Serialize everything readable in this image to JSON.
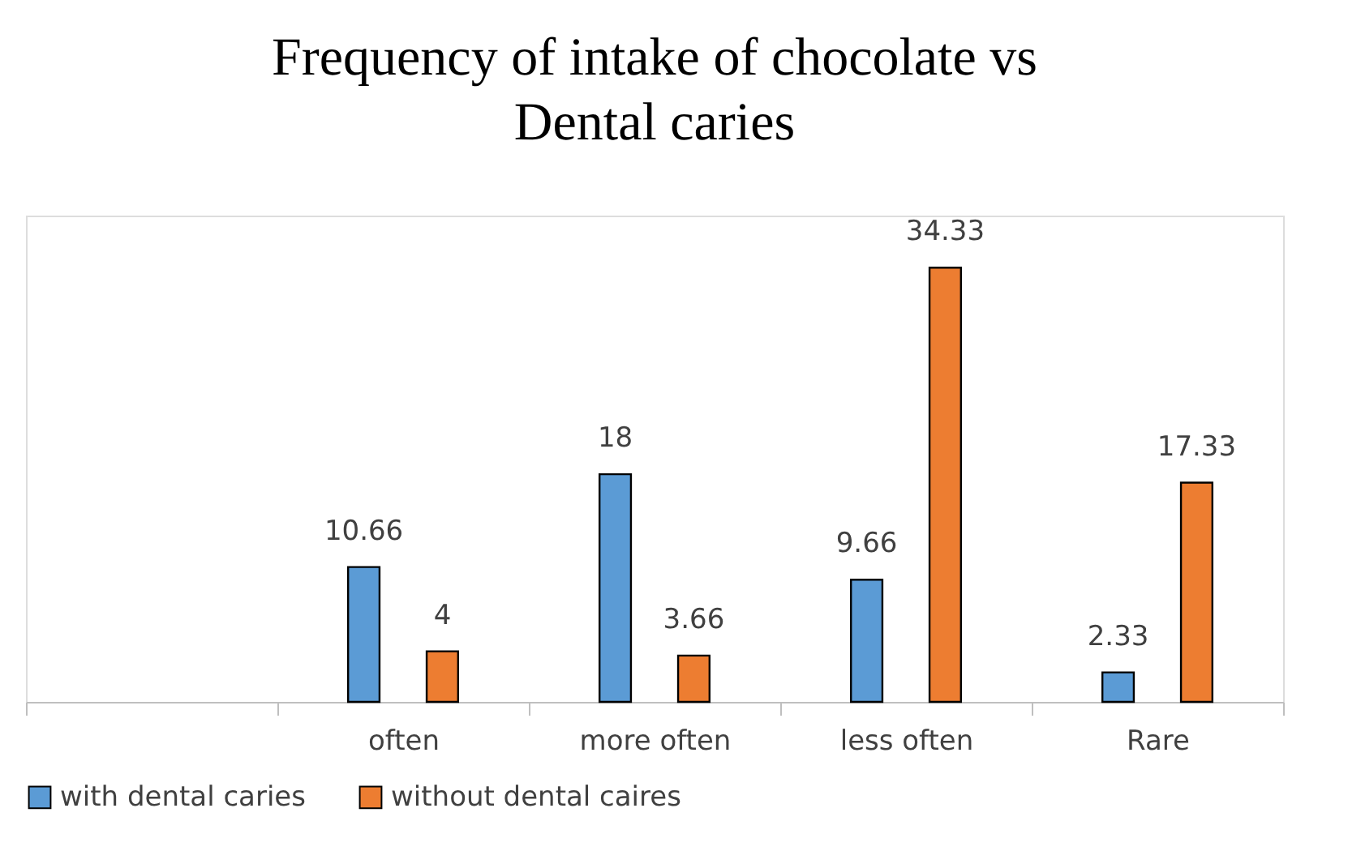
{
  "chart_data": {
    "type": "bar",
    "title": "Frequency of intake of chocolate vs Dental caries",
    "categories": [
      null,
      "often",
      "more often",
      "less often",
      "Rare"
    ],
    "series": [
      {
        "name": "with dental caries",
        "color": "#5b9bd5",
        "values": [
          null,
          10.66,
          18,
          9.66,
          2.33
        ]
      },
      {
        "name": "without dental caires",
        "color": "#ed7d31",
        "values": [
          null,
          4,
          3.66,
          34.33,
          17.33
        ]
      }
    ],
    "data_labels": true,
    "legend": "bottom",
    "grid": false
  }
}
